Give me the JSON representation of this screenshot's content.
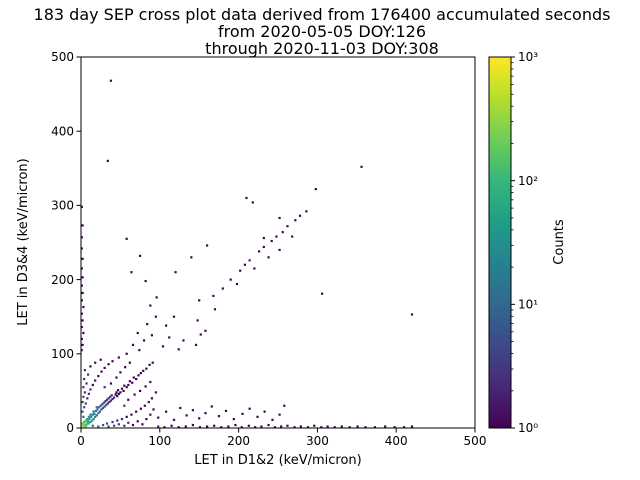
{
  "title": {
    "line1": "183 day SEP cross plot data derived from 176400 accumulated seconds",
    "line2": "from 2020-05-05 DOY:126",
    "line3": "through 2020-11-03 DOY:308"
  },
  "colors": {
    "background": "#ffffff",
    "axis": "#000000",
    "viridis": [
      "#440154",
      "#482878",
      "#3e4989",
      "#31688e",
      "#26828e",
      "#1f9e89",
      "#35b779",
      "#6ece58",
      "#b5de2b",
      "#fde725"
    ]
  },
  "chart_data": {
    "type": "heatmap",
    "subtype": "2d-histogram-scatter",
    "xlabel": "LET in D1&2 (keV/micron)",
    "ylabel": "LET in D3&4 (keV/micron)",
    "xlim": [
      0,
      500
    ],
    "ylim": [
      0,
      500
    ],
    "xticks": [
      0,
      100,
      200,
      300,
      400,
      500
    ],
    "yticks": [
      0,
      100,
      200,
      300,
      400,
      500
    ],
    "grid": false,
    "colorbar": {
      "label": "Counts",
      "scale": "log",
      "colormap": "viridis",
      "range": [
        1,
        1000
      ],
      "tick_values": [
        1,
        10,
        100,
        1000
      ],
      "ticks": [
        "10⁰",
        "10¹",
        "10²",
        "10³"
      ]
    },
    "points": [
      [
        1,
        1,
        900
      ],
      [
        2,
        3,
        420
      ],
      [
        3,
        1,
        360
      ],
      [
        4,
        4,
        260
      ],
      [
        2,
        6,
        190
      ],
      [
        6,
        2,
        170
      ],
      [
        5,
        5,
        210
      ],
      [
        7,
        4,
        130
      ],
      [
        4,
        8,
        115
      ],
      [
        8,
        7,
        95
      ],
      [
        6,
        10,
        75
      ],
      [
        10,
        6,
        85
      ],
      [
        9,
        9,
        62
      ],
      [
        12,
        8,
        56
      ],
      [
        8,
        12,
        50
      ],
      [
        11,
        12,
        42
      ],
      [
        14,
        10,
        36
      ],
      [
        10,
        15,
        33
      ],
      [
        13,
        15,
        28
      ],
      [
        16,
        12,
        26
      ],
      [
        12,
        18,
        22
      ],
      [
        15,
        18,
        20
      ],
      [
        18,
        15,
        18
      ],
      [
        17,
        19,
        16
      ],
      [
        20,
        17,
        14
      ],
      [
        16,
        22,
        13
      ],
      [
        19,
        23,
        11
      ],
      [
        22,
        20,
        10
      ],
      [
        21,
        25,
        9
      ],
      [
        24,
        22,
        8
      ],
      [
        20,
        28,
        8
      ],
      [
        23,
        28,
        7
      ],
      [
        26,
        25,
        6
      ],
      [
        25,
        30,
        6
      ],
      [
        28,
        27,
        5
      ],
      [
        27,
        32,
        5
      ],
      [
        30,
        29,
        4
      ],
      [
        29,
        34,
        4
      ],
      [
        32,
        31,
        4
      ],
      [
        31,
        36,
        3
      ],
      [
        34,
        33,
        3
      ],
      [
        33,
        38,
        3
      ],
      [
        36,
        35,
        3
      ],
      [
        35,
        40,
        2
      ],
      [
        38,
        37,
        2
      ],
      [
        37,
        42,
        2
      ],
      [
        40,
        39,
        2
      ],
      [
        39,
        44,
        2
      ],
      [
        42,
        41,
        2
      ],
      [
        44,
        45,
        1
      ],
      [
        46,
        43,
        1
      ],
      [
        45,
        48,
        1
      ],
      [
        48,
        46,
        1
      ],
      [
        47,
        51,
        1
      ],
      [
        50,
        48,
        1
      ],
      [
        52,
        53,
        1
      ],
      [
        54,
        50,
        1
      ],
      [
        55,
        57,
        1
      ],
      [
        58,
        55,
        1
      ],
      [
        60,
        58,
        1
      ],
      [
        62,
        63,
        1
      ],
      [
        65,
        61,
        1
      ],
      [
        67,
        68,
        1
      ],
      [
        70,
        66,
        1
      ],
      [
        73,
        71,
        1
      ],
      [
        76,
        74,
        1
      ],
      [
        79,
        77,
        1
      ],
      [
        83,
        80,
        1
      ],
      [
        87,
        85,
        1
      ],
      [
        91,
        88,
        1
      ],
      [
        3,
        15,
        12
      ],
      [
        15,
        3,
        14
      ],
      [
        2,
        22,
        8
      ],
      [
        22,
        2,
        9
      ],
      [
        4,
        28,
        6
      ],
      [
        28,
        4,
        6
      ],
      [
        2,
        35,
        5
      ],
      [
        35,
        2,
        5
      ],
      [
        6,
        33,
        4
      ],
      [
        33,
        6,
        4
      ],
      [
        3,
        42,
        4
      ],
      [
        42,
        3,
        4
      ],
      [
        8,
        40,
        3
      ],
      [
        40,
        8,
        3
      ],
      [
        5,
        48,
        3
      ],
      [
        48,
        5,
        3
      ],
      [
        10,
        46,
        2
      ],
      [
        46,
        10,
        2
      ],
      [
        3,
        55,
        3
      ],
      [
        55,
        3,
        2
      ],
      [
        12,
        52,
        2
      ],
      [
        52,
        12,
        2
      ],
      [
        7,
        60,
        2
      ],
      [
        60,
        7,
        2
      ],
      [
        15,
        58,
        1
      ],
      [
        58,
        15,
        1
      ],
      [
        4,
        66,
        2
      ],
      [
        66,
        4,
        1
      ],
      [
        18,
        64,
        1
      ],
      [
        64,
        18,
        1
      ],
      [
        9,
        72,
        2
      ],
      [
        72,
        9,
        1
      ],
      [
        22,
        70,
        1
      ],
      [
        70,
        22,
        1
      ],
      [
        5,
        78,
        2
      ],
      [
        78,
        5,
        1
      ],
      [
        26,
        76,
        1
      ],
      [
        76,
        26,
        1
      ],
      [
        12,
        83,
        1
      ],
      [
        83,
        12,
        1
      ],
      [
        30,
        81,
        1
      ],
      [
        81,
        30,
        1
      ],
      [
        18,
        88,
        1
      ],
      [
        88,
        18,
        1
      ],
      [
        35,
        86,
        1
      ],
      [
        86,
        35,
        1
      ],
      [
        25,
        92,
        1
      ],
      [
        92,
        25,
        1
      ],
      [
        40,
        90,
        1
      ],
      [
        90,
        40,
        1
      ],
      [
        30,
        55,
        2
      ],
      [
        55,
        30,
        2
      ],
      [
        38,
        60,
        1
      ],
      [
        60,
        38,
        1
      ],
      [
        45,
        68,
        1
      ],
      [
        68,
        45,
        1
      ],
      [
        50,
        75,
        1
      ],
      [
        75,
        50,
        1
      ],
      [
        56,
        82,
        1
      ],
      [
        82,
        56,
        1
      ],
      [
        62,
        88,
        1
      ],
      [
        88,
        62,
        1
      ],
      [
        48,
        95,
        1
      ],
      [
        95,
        48,
        1
      ],
      [
        1,
        105,
        2
      ],
      [
        2,
        112,
        1
      ],
      [
        1,
        120,
        1
      ],
      [
        3,
        128,
        1
      ],
      [
        1,
        136,
        1
      ],
      [
        2,
        145,
        1
      ],
      [
        1,
        154,
        1
      ],
      [
        3,
        163,
        1
      ],
      [
        1,
        172,
        1
      ],
      [
        2,
        182,
        1
      ],
      [
        1,
        192,
        1
      ],
      [
        2,
        203,
        1
      ],
      [
        1,
        215,
        1
      ],
      [
        2,
        228,
        1
      ],
      [
        1,
        242,
        1
      ],
      [
        1,
        257,
        1
      ],
      [
        2,
        273,
        1
      ],
      [
        1,
        298,
        1
      ],
      [
        98,
        2,
        2
      ],
      [
        106,
        1,
        1
      ],
      [
        115,
        3,
        1
      ],
      [
        124,
        1,
        1
      ],
      [
        133,
        2,
        1
      ],
      [
        142,
        4,
        1
      ],
      [
        151,
        1,
        1
      ],
      [
        160,
        2,
        1
      ],
      [
        169,
        3,
        1
      ],
      [
        178,
        1,
        1
      ],
      [
        187,
        2,
        1
      ],
      [
        196,
        4,
        1
      ],
      [
        204,
        1,
        1
      ],
      [
        213,
        3,
        1
      ],
      [
        221,
        1,
        1
      ],
      [
        229,
        2,
        1
      ],
      [
        238,
        4,
        1
      ],
      [
        246,
        1,
        1
      ],
      [
        254,
        2,
        1
      ],
      [
        262,
        3,
        1
      ],
      [
        271,
        1,
        1
      ],
      [
        279,
        2,
        1
      ],
      [
        288,
        1,
        1
      ],
      [
        296,
        3,
        1
      ],
      [
        305,
        1,
        1
      ],
      [
        313,
        2,
        1
      ],
      [
        322,
        1,
        1
      ],
      [
        331,
        2,
        1
      ],
      [
        341,
        1,
        1
      ],
      [
        351,
        2,
        1
      ],
      [
        361,
        1,
        1
      ],
      [
        373,
        1,
        1
      ],
      [
        386,
        2,
        1
      ],
      [
        398,
        1,
        1
      ],
      [
        410,
        1,
        1
      ],
      [
        420,
        2,
        1
      ],
      [
        98,
        14,
        1
      ],
      [
        108,
        22,
        1
      ],
      [
        118,
        11,
        1
      ],
      [
        126,
        27,
        1
      ],
      [
        134,
        17,
        1
      ],
      [
        142,
        24,
        1
      ],
      [
        150,
        13,
        1
      ],
      [
        158,
        20,
        1
      ],
      [
        166,
        29,
        1
      ],
      [
        175,
        16,
        1
      ],
      [
        184,
        23,
        1
      ],
      [
        194,
        12,
        1
      ],
      [
        205,
        19,
        1
      ],
      [
        214,
        26,
        1
      ],
      [
        224,
        15,
        1
      ],
      [
        233,
        22,
        1
      ],
      [
        243,
        11,
        1
      ],
      [
        252,
        18,
        1
      ],
      [
        258,
        30,
        1
      ],
      [
        58,
        100,
        1
      ],
      [
        66,
        112,
        1
      ],
      [
        74,
        105,
        1
      ],
      [
        72,
        128,
        1
      ],
      [
        80,
        118,
        1
      ],
      [
        84,
        140,
        1
      ],
      [
        90,
        125,
        1
      ],
      [
        95,
        150,
        1
      ],
      [
        88,
        165,
        1
      ],
      [
        96,
        176,
        1
      ],
      [
        104,
        110,
        1
      ],
      [
        112,
        122,
        1
      ],
      [
        108,
        138,
        1
      ],
      [
        118,
        150,
        1
      ],
      [
        124,
        106,
        1
      ],
      [
        130,
        118,
        1
      ],
      [
        146,
        112,
        1
      ],
      [
        152,
        126,
        1
      ],
      [
        148,
        145,
        1
      ],
      [
        158,
        131,
        1
      ],
      [
        64,
        210,
        1
      ],
      [
        75,
        232,
        1
      ],
      [
        58,
        255,
        1
      ],
      [
        82,
        198,
        1
      ],
      [
        120,
        210,
        1
      ],
      [
        140,
        230,
        1
      ],
      [
        160,
        246,
        1
      ],
      [
        150,
        172,
        1
      ],
      [
        170,
        160,
        1
      ],
      [
        168,
        178,
        1
      ],
      [
        180,
        188,
        1
      ],
      [
        190,
        200,
        1
      ],
      [
        198,
        194,
        1
      ],
      [
        202,
        212,
        1
      ],
      [
        208,
        220,
        1
      ],
      [
        214,
        226,
        2
      ],
      [
        220,
        215,
        1
      ],
      [
        226,
        238,
        1
      ],
      [
        232,
        244,
        1
      ],
      [
        238,
        230,
        1
      ],
      [
        242,
        252,
        1
      ],
      [
        248,
        258,
        1
      ],
      [
        252,
        240,
        1
      ],
      [
        256,
        264,
        1
      ],
      [
        262,
        272,
        1
      ],
      [
        268,
        258,
        1
      ],
      [
        272,
        280,
        1
      ],
      [
        278,
        286,
        1
      ],
      [
        286,
        292,
        1
      ],
      [
        38,
        468,
        1
      ],
      [
        34,
        360,
        1
      ],
      [
        356,
        352,
        1
      ],
      [
        298,
        322,
        1
      ],
      [
        210,
        310,
        1
      ],
      [
        218,
        304,
        1
      ],
      [
        306,
        181,
        1
      ],
      [
        420,
        153,
        1
      ],
      [
        252,
        283,
        1
      ],
      [
        232,
        256,
        1
      ]
    ]
  }
}
